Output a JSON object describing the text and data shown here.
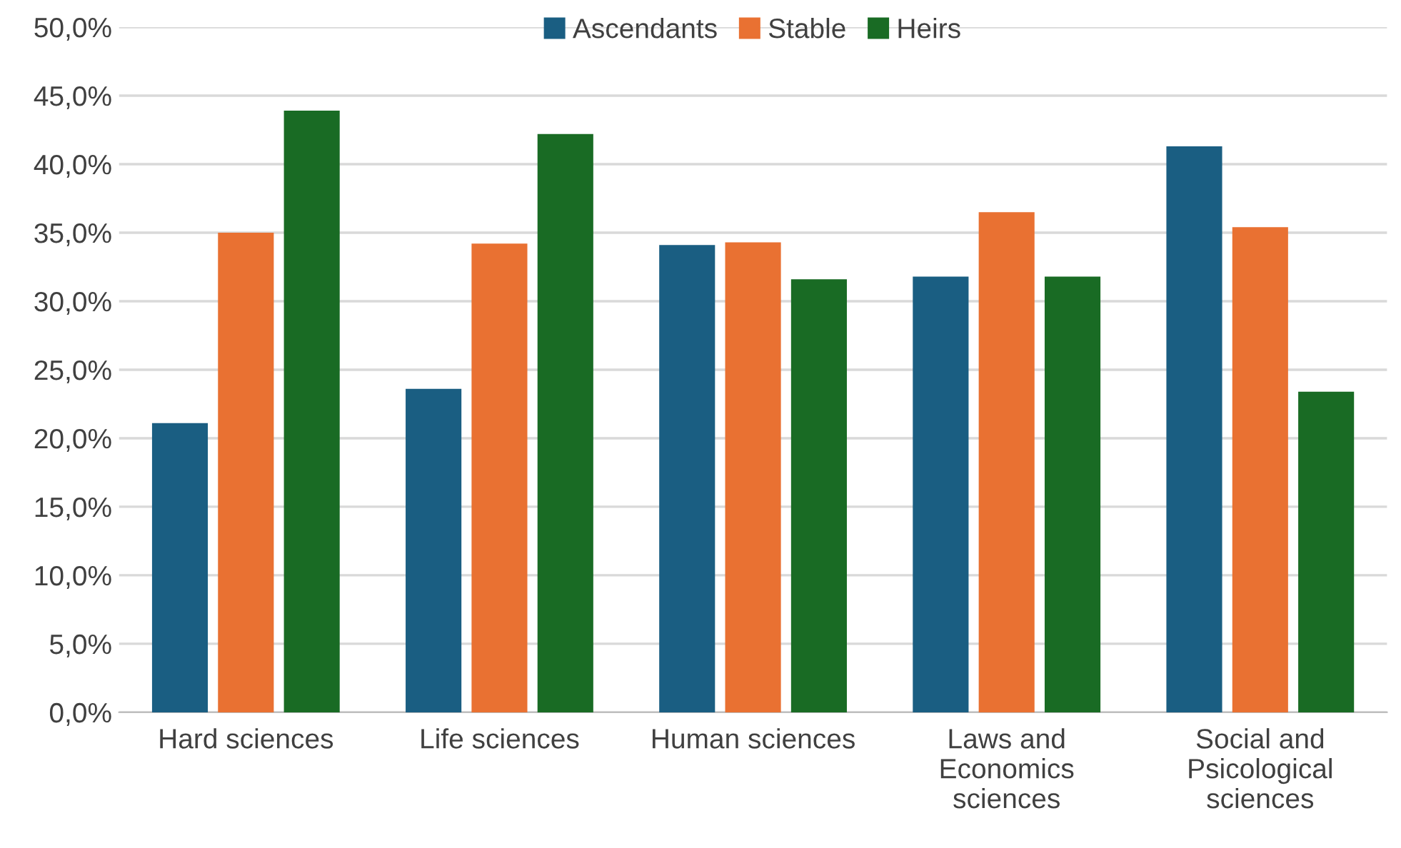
{
  "chart_data": {
    "type": "bar",
    "categories": [
      "Hard sciences",
      "Life sciences",
      "Human sciences",
      "Laws and\nEconomics\nsciences",
      "Social and\nPsicological\nsciences"
    ],
    "series": [
      {
        "name": "Ascendants",
        "color": "#1a5e82",
        "values": [
          21.1,
          23.6,
          34.1,
          31.8,
          41.3
        ]
      },
      {
        "name": "Stable",
        "color": "#e97132",
        "values": [
          35.0,
          34.2,
          34.3,
          36.5,
          35.4
        ]
      },
      {
        "name": "Heirs",
        "color": "#196b24",
        "values": [
          43.9,
          42.2,
          31.6,
          31.8,
          23.4
        ]
      }
    ],
    "ylim": [
      0,
      50
    ],
    "yticks": [
      {
        "value": 0,
        "label": "0,0%"
      },
      {
        "value": 5,
        "label": "5,0%"
      },
      {
        "value": 10,
        "label": "10,0%"
      },
      {
        "value": 15,
        "label": "15,0%"
      },
      {
        "value": 20,
        "label": "20,0%"
      },
      {
        "value": 25,
        "label": "25,0%"
      },
      {
        "value": 30,
        "label": "30,0%"
      },
      {
        "value": 35,
        "label": "35,0%"
      },
      {
        "value": 40,
        "label": "40,0%"
      },
      {
        "value": 45,
        "label": "45,0%"
      },
      {
        "value": 50,
        "label": "50,0%"
      }
    ],
    "grid": "y",
    "legend": "top"
  }
}
